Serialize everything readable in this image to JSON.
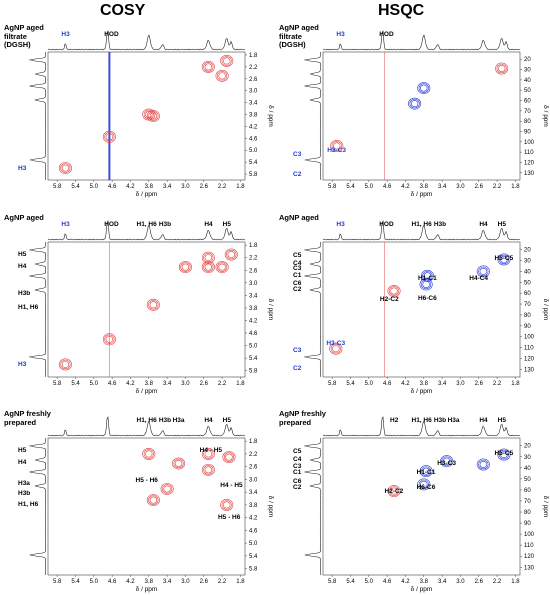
{
  "titles": {
    "cosy": "COSY",
    "hsqc": "HSQC"
  },
  "axis_label_x": "δ / ppm",
  "axis_label_y": "δ / ppm",
  "colors": {
    "positive": "#e23b3b",
    "negative": "#2237d6",
    "diagonal": "#1a2fd0",
    "trace": "#222222"
  },
  "x_ticks": [
    "5.8",
    "5.4",
    "5.0",
    "4.6",
    "4.2",
    "3.8",
    "3.4",
    "3.0",
    "2.6",
    "2.2",
    "1.8"
  ],
  "cosy_y_ticks": [
    "1.8",
    "2.2",
    "2.6",
    "3.0",
    "3.4",
    "3.8",
    "4.2",
    "4.6",
    "5.0",
    "5.4",
    "5.8"
  ],
  "hsqc_y_ticks": [
    "20",
    "30",
    "40",
    "50",
    "60",
    "70",
    "80",
    "90",
    "100",
    "110",
    "120",
    "130"
  ],
  "panels": [
    {
      "id": "cosy-filtrate",
      "sample_title": [
        "AgNP aged",
        "filtrate",
        "(DGSH)"
      ],
      "top_labels": [
        {
          "text": "H3",
          "ppm": 5.62,
          "blue": true
        },
        {
          "text": "HOD",
          "ppm": 4.62,
          "blue": false
        }
      ],
      "left_labels": [
        {
          "text": "H3",
          "ppm": 5.62,
          "blue": true
        }
      ],
      "peak_labels": [],
      "diagonal": true
    },
    {
      "id": "hsqc-filtrate",
      "sample_title": [
        "AgNP aged",
        "filtrate",
        "(DGSH)"
      ],
      "top_labels": [
        {
          "text": "H3",
          "ppm": 5.62,
          "blue": true
        },
        {
          "text": "HOD",
          "ppm": 4.62,
          "blue": false
        }
      ],
      "left_labels": [
        {
          "text": "C3",
          "c": 113,
          "blue": true
        },
        {
          "text": "C2",
          "c": 132,
          "blue": true
        }
      ],
      "peak_labels": [
        {
          "text": "H3-C3",
          "ppm": 5.7,
          "c": 104,
          "blue": true
        }
      ]
    },
    {
      "id": "cosy-aged",
      "sample_title": [
        "AgNP aged"
      ],
      "top_labels": [
        {
          "text": "H3",
          "ppm": 5.62,
          "blue": true
        },
        {
          "text": "HOD",
          "ppm": 4.62,
          "blue": false
        },
        {
          "text": "H1, H6",
          "ppm": 3.85,
          "blue": false
        },
        {
          "text": "H3b",
          "ppm": 3.45,
          "blue": false
        },
        {
          "text": "H4",
          "ppm": 2.5,
          "blue": false
        },
        {
          "text": "H5",
          "ppm": 2.1,
          "blue": false
        }
      ],
      "left_labels": [
        {
          "text": "H5",
          "ppm": 2.1,
          "blue": false
        },
        {
          "text": "H4",
          "ppm": 2.5,
          "blue": false
        },
        {
          "text": "H3b",
          "ppm": 3.35,
          "blue": false
        },
        {
          "text": "H1, H6",
          "ppm": 3.8,
          "blue": false
        },
        {
          "text": "H3",
          "ppm": 5.62,
          "blue": true
        }
      ],
      "peak_labels": [],
      "diagonal": false
    },
    {
      "id": "hsqc-aged",
      "sample_title": [
        "AgNP aged"
      ],
      "top_labels": [
        {
          "text": "H3",
          "ppm": 5.62,
          "blue": true
        },
        {
          "text": "HOD",
          "ppm": 4.62,
          "blue": false
        },
        {
          "text": "H1, H6",
          "ppm": 3.85,
          "blue": false
        },
        {
          "text": "H3b",
          "ppm": 3.45,
          "blue": false
        },
        {
          "text": "H4",
          "ppm": 2.5,
          "blue": false
        },
        {
          "text": "H5",
          "ppm": 2.1,
          "blue": false
        }
      ],
      "left_labels": [
        {
          "text": "C5",
          "c": 26,
          "blue": false
        },
        {
          "text": "C4",
          "c": 33,
          "blue": false
        },
        {
          "text": "C3",
          "c": 38,
          "blue": false
        },
        {
          "text": "C1",
          "c": 44,
          "blue": false
        },
        {
          "text": "C6",
          "c": 52,
          "blue": false
        },
        {
          "text": "C2",
          "c": 57,
          "blue": false
        },
        {
          "text": "C3",
          "c": 113,
          "blue": true
        },
        {
          "text": "C2",
          "c": 130,
          "blue": true
        }
      ],
      "peak_labels": [
        {
          "text": "H1-C1",
          "ppm": 3.72,
          "c": 42,
          "blue": false
        },
        {
          "text": "H6-C6",
          "ppm": 3.72,
          "c": 61,
          "blue": false
        },
        {
          "text": "H2-C2",
          "ppm": 4.55,
          "c": 62,
          "blue": false
        },
        {
          "text": "H4-C4",
          "ppm": 2.6,
          "c": 42,
          "blue": false
        },
        {
          "text": "H5-C5",
          "ppm": 2.05,
          "c": 24,
          "blue": false
        },
        {
          "text": "H3-C3",
          "ppm": 5.72,
          "c": 102,
          "blue": true
        }
      ]
    },
    {
      "id": "cosy-fresh",
      "sample_title": [
        "AgNP freshly",
        "prepared"
      ],
      "top_labels": [
        {
          "text": "H1, H6",
          "ppm": 3.85,
          "blue": false
        },
        {
          "text": "H3b",
          "ppm": 3.45,
          "blue": false
        },
        {
          "text": "H3a",
          "ppm": 3.15,
          "blue": false
        },
        {
          "text": "H4",
          "ppm": 2.5,
          "blue": false
        },
        {
          "text": "H5",
          "ppm": 2.1,
          "blue": false
        }
      ],
      "left_labels": [
        {
          "text": "H5",
          "ppm": 2.1,
          "blue": false
        },
        {
          "text": "H4",
          "ppm": 2.5,
          "blue": false
        },
        {
          "text": "H3a",
          "ppm": 3.15,
          "blue": false
        },
        {
          "text": "H3b",
          "ppm": 3.45,
          "blue": false
        },
        {
          "text": "H1, H6",
          "ppm": 3.8,
          "blue": false
        }
      ],
      "peak_labels": [
        {
          "text": "H4 - H5",
          "ppm": 2.45,
          "c": 1.95,
          "blue": false
        },
        {
          "text": "H5 - H6",
          "ppm": 3.85,
          "c": 2.9,
          "blue": false
        },
        {
          "text": "H4 - H5",
          "ppm": 2.0,
          "c": 3.05,
          "blue": false
        },
        {
          "text": "H5 - H6",
          "ppm": 2.05,
          "c": 4.05,
          "blue": false
        }
      ],
      "diagonal": false
    },
    {
      "id": "hsqc-fresh",
      "sample_title": [
        "AgNP freshly",
        "prepared"
      ],
      "top_labels": [
        {
          "text": "H2",
          "ppm": 4.45,
          "blue": false
        },
        {
          "text": "H1, H6",
          "ppm": 3.85,
          "blue": false
        },
        {
          "text": "H3b",
          "ppm": 3.45,
          "blue": false
        },
        {
          "text": "H3a",
          "ppm": 3.15,
          "blue": false
        },
        {
          "text": "H4",
          "ppm": 2.5,
          "blue": false
        },
        {
          "text": "H5",
          "ppm": 2.1,
          "blue": false
        }
      ],
      "left_labels": [
        {
          "text": "C5",
          "c": 26,
          "blue": false
        },
        {
          "text": "C4",
          "c": 33,
          "blue": false
        },
        {
          "text": "C3",
          "c": 39,
          "blue": false
        },
        {
          "text": "C1",
          "c": 45,
          "blue": false
        },
        {
          "text": "C6",
          "c": 53,
          "blue": false
        },
        {
          "text": "C2",
          "c": 58,
          "blue": false
        }
      ],
      "peak_labels": [
        {
          "text": "H3-C3",
          "ppm": 3.3,
          "c": 32,
          "blue": false
        },
        {
          "text": "H1-C1",
          "ppm": 3.75,
          "c": 40,
          "blue": false
        },
        {
          "text": "H6-C6",
          "ppm": 3.75,
          "c": 54,
          "blue": false
        },
        {
          "text": "H2-C2",
          "ppm": 4.45,
          "c": 57,
          "blue": false
        },
        {
          "text": "H5-C5",
          "ppm": 2.05,
          "c": 23,
          "blue": false
        }
      ]
    }
  ]
}
